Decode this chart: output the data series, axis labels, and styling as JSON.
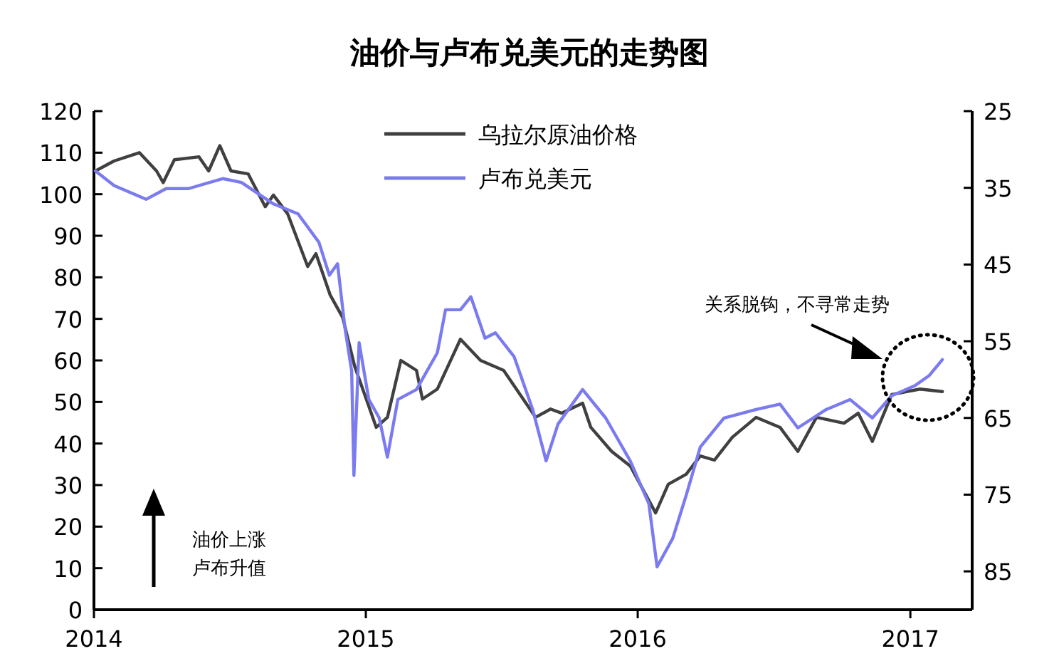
{
  "chart_data": {
    "type": "line",
    "title": "油价与卢布兑美元的走势图",
    "xlim": [
      "2014-01-01",
      "2017-03-25"
    ],
    "xticks": [
      {
        "value": "2014-01-01",
        "label": "2014"
      },
      {
        "value": "2015-01-01",
        "label": "2015"
      },
      {
        "value": "2016-01-01",
        "label": "2016"
      },
      {
        "value": "2017-01-01",
        "label": "2017"
      }
    ],
    "ylim": [
      0,
      120
    ],
    "yticks": [
      0,
      10,
      20,
      30,
      40,
      50,
      60,
      70,
      80,
      90,
      100,
      110,
      120
    ],
    "y2lim": [
      90,
      25
    ],
    "y2ticks": [
      25,
      35,
      45,
      55,
      65,
      75,
      85
    ],
    "legend": "top",
    "grid": false,
    "annotations": [
      "关系脱钩，不寻常走势",
      "油价上涨",
      "卢布升值"
    ],
    "series": [
      {
        "name": "乌拉尔原油价格",
        "color": "#404040",
        "x": [
          "2014-01-03",
          "2014-01-28",
          "2014-03-03",
          "2014-03-26",
          "2014-04-04",
          "2014-04-19",
          "2014-05-22",
          "2014-06-04",
          "2014-06-19",
          "2014-07-04",
          "2014-07-27",
          "2014-08-19",
          "2014-08-30",
          "2014-09-18",
          "2014-10-15",
          "2014-10-26",
          "2014-11-14",
          "2014-12-01",
          "2014-12-17",
          "2015-01-15",
          "2015-01-30",
          "2015-02-17",
          "2015-03-10",
          "2015-03-18",
          "2015-04-07",
          "2015-05-08",
          "2015-06-04",
          "2015-07-05",
          "2015-08-17",
          "2015-09-06",
          "2015-09-21",
          "2015-10-19",
          "2015-10-30",
          "2015-11-27",
          "2015-12-22",
          "2016-01-25",
          "2016-02-11",
          "2016-03-06",
          "2016-03-25",
          "2016-04-13",
          "2016-05-07",
          "2016-06-08",
          "2016-07-10",
          "2016-08-03",
          "2016-08-28",
          "2016-10-04",
          "2016-10-23",
          "2016-11-11",
          "2016-12-07",
          "2017-01-14",
          "2017-02-13"
        ],
        "values": [
          105.6,
          108.0,
          110.0,
          105.6,
          102.8,
          108.3,
          109.0,
          105.6,
          111.7,
          105.6,
          104.9,
          97.0,
          99.8,
          95.3,
          82.6,
          85.7,
          75.8,
          70.3,
          58.6,
          43.9,
          46.3,
          60.0,
          57.6,
          50.7,
          53.1,
          65.1,
          60.0,
          57.6,
          46.3,
          48.3,
          47.3,
          49.7,
          43.9,
          38.1,
          34.6,
          23.3,
          30.2,
          32.6,
          37.0,
          36.0,
          41.5,
          46.3,
          43.9,
          38.1,
          46.3,
          44.9,
          47.3,
          40.5,
          51.8,
          53.1,
          52.5
        ]
      },
      {
        "name": "卢布兑美元",
        "color": "#7b7bf0",
        "axis": "y2",
        "x": [
          "2014-01-03",
          "2014-01-28",
          "2014-03-12",
          "2014-04-08",
          "2014-05-08",
          "2014-06-23",
          "2014-07-18",
          "2014-08-30",
          "2014-10-02",
          "2014-10-30",
          "2014-11-13",
          "2014-11-24",
          "2014-12-04",
          "2014-12-13",
          "2014-12-16",
          "2014-12-23",
          "2015-01-05",
          "2015-01-19",
          "2015-01-30",
          "2015-02-13",
          "2015-03-10",
          "2015-04-07",
          "2015-04-18",
          "2015-05-08",
          "2015-05-22",
          "2015-06-10",
          "2015-06-24",
          "2015-07-19",
          "2015-08-13",
          "2015-08-31",
          "2015-09-16",
          "2015-10-19",
          "2015-11-19",
          "2015-12-22",
          "2016-01-16",
          "2016-01-27",
          "2016-02-17",
          "2016-03-06",
          "2016-03-25",
          "2016-04-26",
          "2016-06-08",
          "2016-07-10",
          "2016-08-03",
          "2016-09-10",
          "2016-10-12",
          "2016-11-11",
          "2016-12-07",
          "2017-01-07",
          "2017-01-26",
          "2017-02-13"
        ],
        "values": [
          32.8,
          34.7,
          36.5,
          35.1,
          35.1,
          33.8,
          34.3,
          37.1,
          38.4,
          42.1,
          46.4,
          44.9,
          53.3,
          58.9,
          72.5,
          55.2,
          62.6,
          65.0,
          70.1,
          62.6,
          61.3,
          56.5,
          50.9,
          50.9,
          49.2,
          54.6,
          53.9,
          57.0,
          63.9,
          70.6,
          65.8,
          61.3,
          65.0,
          70.6,
          76.2,
          84.4,
          80.7,
          75.1,
          68.8,
          65.0,
          63.9,
          63.2,
          66.3,
          63.9,
          62.6,
          65.0,
          62.1,
          60.8,
          59.5,
          57.4
        ]
      }
    ]
  }
}
